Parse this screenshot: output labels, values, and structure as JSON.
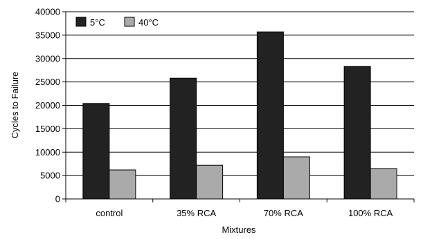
{
  "chart_data": {
    "type": "bar",
    "xlabel": "Mixtures",
    "ylabel": "Cycles to Failure",
    "categories": [
      "control",
      "35% RCA",
      "70% RCA",
      "100% RCA"
    ],
    "series": [
      {
        "name": "5°C",
        "values": [
          20400,
          25800,
          35700,
          28300
        ],
        "color": "#222222"
      },
      {
        "name": "40°C",
        "values": [
          6200,
          7200,
          9000,
          6500
        ],
        "color": "#aaaaaa"
      }
    ],
    "ylim": [
      0,
      40000
    ],
    "yticks": [
      0,
      5000,
      10000,
      15000,
      20000,
      25000,
      30000,
      35000,
      40000
    ],
    "grid": true,
    "legend_position": "top-left"
  }
}
